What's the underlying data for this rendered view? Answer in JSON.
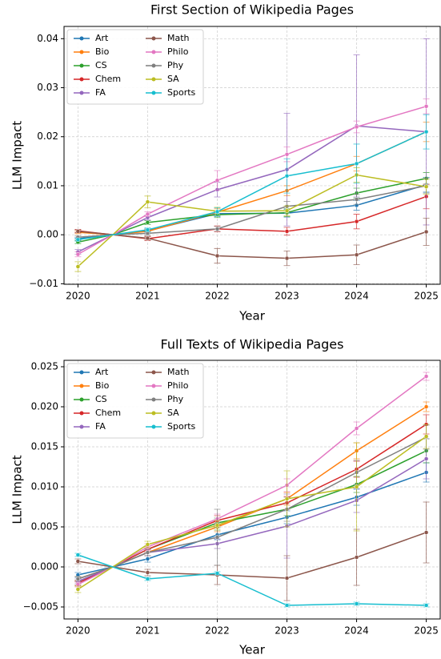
{
  "chart_data": [
    {
      "type": "line",
      "title": "First Section of Wikipedia Pages",
      "x_label": "Year",
      "y_label": "LLM Impact",
      "x": [
        2020,
        2020.5,
        2021,
        2022,
        2023,
        2024,
        2025
      ],
      "xlim": [
        2019.8,
        2025.2
      ],
      "xticks": [
        2020,
        2021,
        2022,
        2023,
        2024,
        2025
      ],
      "ylim": [
        -0.0101,
        0.0425
      ],
      "yticks": [
        {
          "value": -0.01,
          "label": "−0.01"
        },
        {
          "value": 0,
          "label": "0.00"
        },
        0.01,
        0.02,
        0.03,
        0.04
      ],
      "grid": true,
      "legend": "upper left",
      "series": [
        {
          "name": "Art",
          "color": "#1f77b4",
          "values": [
            -0.0008,
            0,
            0.0008,
            0.0043,
            0.0044,
            0.006,
            0.0102
          ],
          "errors": [
            0.0003,
            0,
            0.0004,
            0.0006,
            0.0008,
            0.001,
            0.0015
          ]
        },
        {
          "name": "Bio",
          "color": "#ff7f0e",
          "values": [
            0.0005,
            0,
            0.0007,
            0.0046,
            0.009,
            0.0145,
            0.021
          ],
          "errors": [
            0.0003,
            0,
            0.0004,
            0.0007,
            0.001,
            0.0015,
            0.002
          ]
        },
        {
          "name": "CS",
          "color": "#2ca02c",
          "values": [
            -0.0015,
            0,
            0.0025,
            0.0041,
            0.0045,
            0.0085,
            0.0115
          ],
          "errors": [
            0.0003,
            0,
            0.0004,
            0.0006,
            0.0008,
            0.001,
            0.0012
          ]
        },
        {
          "name": "Chem",
          "color": "#d62728",
          "values": [
            0.0008,
            0,
            -0.0008,
            0.0012,
            0.0007,
            0.0027,
            0.0078
          ],
          "errors": [
            0.0003,
            0,
            0.0004,
            0.0006,
            0.0008,
            0.0015,
            0.0025
          ]
        },
        {
          "name": "FA",
          "color": "#9467bd",
          "values": [
            -0.0035,
            0,
            0.0035,
            0.0092,
            0.0133,
            0.0222,
            0.021
          ],
          "errors": [
            0.0005,
            0,
            0.0005,
            0.0015,
            0.0115,
            0.0145,
            0.019
          ]
        },
        {
          "name": "Math",
          "color": "#8c564b",
          "values": [
            0.0007,
            0,
            -0.0007,
            -0.0043,
            -0.0048,
            -0.0041,
            0.0006
          ],
          "errors": [
            0.0003,
            0,
            0.0004,
            0.0015,
            0.0015,
            0.002,
            0.0028
          ]
        },
        {
          "name": "Philo",
          "color": "#e377c2",
          "values": [
            -0.004,
            0,
            0.0042,
            0.0111,
            0.0164,
            0.022,
            0.0262
          ],
          "errors": [
            0.0005,
            0,
            0.0005,
            0.002,
            0.0015,
            0.0012,
            0.0015
          ]
        },
        {
          "name": "Phy",
          "color": "#7f7f7f",
          "values": [
            -0.0005,
            0,
            0.0003,
            0.0012,
            0.0058,
            0.0072,
            0.01
          ],
          "errors": [
            0.0003,
            0,
            0.0004,
            0.0005,
            0.001,
            0.001,
            0.0015
          ]
        },
        {
          "name": "SA",
          "color": "#bcbd22",
          "values": [
            -0.0065,
            0,
            0.0067,
            0.0048,
            0.0049,
            0.0122,
            0.0098
          ],
          "errors": [
            0.001,
            0,
            0.0012,
            0.0008,
            0.001,
            0.0015,
            0.0015
          ]
        },
        {
          "name": "Sports",
          "color": "#17becf",
          "values": [
            -0.001,
            0,
            0.001,
            0.0047,
            0.012,
            0.0145,
            0.021
          ],
          "errors": [
            0.0003,
            0,
            0.0004,
            0.0008,
            0.0035,
            0.004,
            0.0035
          ]
        }
      ]
    },
    {
      "type": "line",
      "title": "Full Texts of Wikipedia Pages",
      "x_label": "Year",
      "y_label": "LLM Impact",
      "x": [
        2020,
        2020.5,
        2021,
        2022,
        2023,
        2024,
        2025
      ],
      "xlim": [
        2019.8,
        2025.2
      ],
      "xticks": [
        2020,
        2021,
        2022,
        2023,
        2024,
        2025
      ],
      "ylim": [
        -0.0065,
        0.0258
      ],
      "yticks": [
        {
          "value": -0.005,
          "label": "−0.005"
        },
        {
          "value": 0,
          "label": "0.000"
        },
        0.005,
        {
          "value": 0.01,
          "label": "0.010"
        },
        0.015,
        {
          "value": 0.02,
          "label": "0.020"
        },
        0.025
      ],
      "grid": true,
      "legend": "upper left",
      "series": [
        {
          "name": "Art",
          "color": "#1f77b4",
          "values": [
            -0.001,
            0,
            0.001,
            0.004,
            0.0062,
            0.0087,
            0.0118
          ],
          "errors": [
            0.0003,
            0,
            0.0004,
            0.0006,
            0.0008,
            0.001,
            0.0012
          ]
        },
        {
          "name": "Bio",
          "color": "#ff7f0e",
          "values": [
            -0.0015,
            0,
            0.0018,
            0.005,
            0.0085,
            0.0145,
            0.02
          ],
          "errors": [
            0.0003,
            0,
            0.0004,
            0.0006,
            0.0008,
            0.001,
            0.0006
          ]
        },
        {
          "name": "CS",
          "color": "#2ca02c",
          "values": [
            -0.002,
            0,
            0.0022,
            0.0055,
            0.0072,
            0.0103,
            0.0145
          ],
          "errors": [
            0.0003,
            0,
            0.0004,
            0.0006,
            0.0008,
            0.001,
            0.0015
          ]
        },
        {
          "name": "Chem",
          "color": "#d62728",
          "values": [
            -0.002,
            0,
            0.0022,
            0.0058,
            0.008,
            0.0122,
            0.0178
          ],
          "errors": [
            0.0003,
            0,
            0.0004,
            0.0006,
            0.0008,
            0.001,
            0.0012
          ]
        },
        {
          "name": "FA",
          "color": "#9467bd",
          "values": [
            -0.0018,
            0,
            0.0018,
            0.0029,
            0.0051,
            0.0083,
            0.0135
          ],
          "errors": [
            0.0003,
            0,
            0.0004,
            0.0006,
            0.004,
            0.0015,
            0.0025
          ]
        },
        {
          "name": "Math",
          "color": "#8c564b",
          "values": [
            0.0007,
            0,
            -0.0007,
            -0.001,
            -0.0014,
            0.0012,
            0.0043
          ],
          "errors": [
            0.0003,
            0,
            0.0004,
            0.0012,
            0.0028,
            0.0035,
            0.0038
          ]
        },
        {
          "name": "Philo",
          "color": "#e377c2",
          "values": [
            -0.0022,
            0,
            0.0025,
            0.006,
            0.0102,
            0.0173,
            0.0238
          ],
          "errors": [
            0.0003,
            0,
            0.0004,
            0.0006,
            0.0008,
            0.0008,
            0.0005
          ]
        },
        {
          "name": "Phy",
          "color": "#7f7f7f",
          "values": [
            -0.0015,
            0,
            0.0018,
            0.0037,
            0.0072,
            0.0118,
            0.0162
          ],
          "errors": [
            0.0003,
            0,
            0.0004,
            0.0035,
            0.0015,
            0.0015,
            0.0015
          ]
        },
        {
          "name": "SA",
          "color": "#bcbd22",
          "values": [
            -0.0028,
            0,
            0.0028,
            0.0052,
            0.0085,
            0.01,
            0.0163
          ],
          "errors": [
            0.0004,
            0,
            0.0004,
            0.0006,
            0.0035,
            0.0055,
            0.0015
          ]
        },
        {
          "name": "Sports",
          "color": "#17becf",
          "values": [
            0.0015,
            0,
            -0.0015,
            -0.0008,
            -0.0048,
            -0.0046,
            -0.0048
          ],
          "errors": [
            0.0002,
            0,
            0.0002,
            0.0002,
            0.0002,
            0.0002,
            0.0002
          ]
        }
      ]
    }
  ]
}
